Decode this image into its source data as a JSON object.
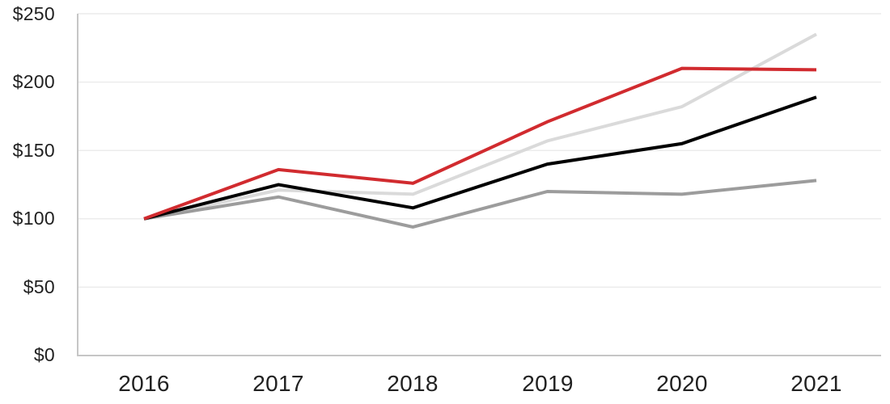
{
  "page": {
    "background": "#FFFFFF"
  },
  "chart_data": {
    "type": "line",
    "title": "",
    "xlabel": "",
    "ylabel": "",
    "categories": [
      "2016",
      "2017",
      "2018",
      "2019",
      "2020",
      "2021"
    ],
    "series": [
      {
        "name": "light-gray-series",
        "color": "#DADADA",
        "values": [
          100,
          121,
          118,
          157,
          182,
          235
        ]
      },
      {
        "name": "medium-gray-series",
        "color": "#9C9C9C",
        "values": [
          100,
          116,
          94,
          120,
          118,
          128
        ]
      },
      {
        "name": "black-series",
        "color": "#000000",
        "values": [
          100,
          125,
          108,
          140,
          155,
          189
        ]
      },
      {
        "name": "red-series",
        "color": "#D12B2F",
        "values": [
          100,
          136,
          126,
          171,
          210,
          209
        ]
      }
    ],
    "y_ticks": [
      {
        "value": 250,
        "label": "$250"
      },
      {
        "value": 200,
        "label": "$200"
      },
      {
        "value": 150,
        "label": "$150"
      },
      {
        "value": 100,
        "label": "$100"
      },
      {
        "value": 50,
        "label": "$50"
      },
      {
        "value": 0,
        "label": "$0"
      }
    ],
    "ylim": [
      0,
      250
    ],
    "grid": "horizontal",
    "legend": "none",
    "line_width": 4,
    "colors": {
      "gridline": "#ECECEC",
      "axis": "#C6C6C6",
      "tick_text": "#212121"
    }
  }
}
